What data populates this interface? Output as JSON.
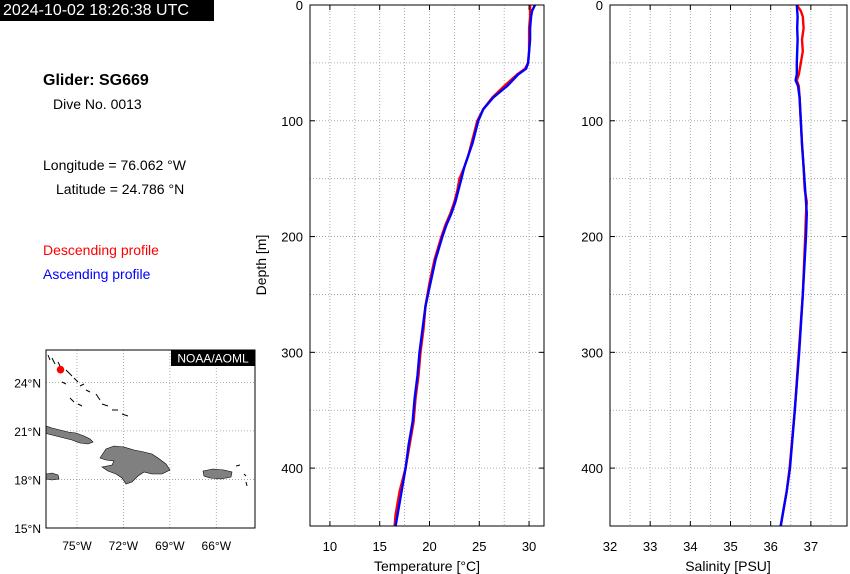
{
  "header": {
    "timestamp": "2024-10-02 18:26:38 UTC",
    "glider_title": "Glider: SG669",
    "dive_no": "Dive No. 0013",
    "longitude": "Longitude = 76.062 °W",
    "latitude": "Latitude = 24.786 °N"
  },
  "legend": {
    "descending": "Descending profile",
    "ascending": "Ascending profile",
    "descending_color": "#ff0000",
    "ascending_color": "#0000ff"
  },
  "map": {
    "credit": "NOAA/AOML",
    "lat_ticks": [
      "24°N",
      "21°N",
      "18°N",
      "15°N"
    ],
    "lon_ticks": [
      "75°W",
      "72°W",
      "69°W",
      "66°W"
    ],
    "lat_values": [
      24,
      21,
      18,
      15
    ],
    "lon_values": [
      -75,
      -72,
      -69,
      -66
    ],
    "lon_range": [
      -77,
      -63.5
    ],
    "lat_range": [
      15,
      26
    ],
    "glider_position": {
      "lon": -76.062,
      "lat": 24.786
    },
    "land_color": "#808080",
    "marker_color": "#ff0000"
  },
  "chart_data": [
    {
      "type": "line",
      "xlabel": "Temperature [°C]",
      "ylabel": "Depth [m]",
      "xlim": [
        8,
        31.5
      ],
      "ylim": [
        450,
        0
      ],
      "x_ticks": [
        10,
        15,
        20,
        25,
        30
      ],
      "x_tick_labels": [
        "10",
        "15",
        "20",
        "25",
        "30"
      ],
      "y_ticks": [
        0,
        100,
        200,
        300,
        400
      ],
      "y_tick_labels": [
        "0",
        "100",
        "200",
        "300",
        "400"
      ],
      "grid": true,
      "series": [
        {
          "color": "#ff0000",
          "y": [
            0,
            10,
            20,
            30,
            40,
            50,
            55,
            60,
            70,
            80,
            90,
            100,
            110,
            120,
            130,
            140,
            150,
            160,
            170,
            180,
            190,
            200,
            220,
            240,
            260,
            280,
            300,
            320,
            340,
            360,
            380,
            400,
            420,
            440,
            450
          ],
          "values": [
            30.1,
            30.1,
            30.0,
            30.0,
            30.0,
            29.9,
            29.6,
            28.8,
            27.5,
            26.3,
            25.4,
            24.8,
            24.5,
            24.2,
            23.9,
            23.5,
            23.0,
            22.8,
            22.5,
            22.1,
            21.6,
            21.2,
            20.5,
            20.0,
            19.6,
            19.4,
            19.1,
            18.9,
            18.6,
            18.4,
            18.0,
            17.6,
            17.0,
            16.6,
            16.5
          ]
        },
        {
          "color": "#0000ff",
          "y": [
            0,
            5,
            10,
            20,
            30,
            40,
            50,
            55,
            60,
            70,
            80,
            90,
            100,
            110,
            120,
            130,
            140,
            150,
            160,
            170,
            180,
            190,
            200,
            220,
            240,
            260,
            280,
            300,
            320,
            340,
            360,
            380,
            400,
            420,
            440,
            450
          ],
          "values": [
            30.6,
            30.3,
            30.2,
            30.1,
            30.1,
            30.0,
            29.9,
            29.7,
            28.9,
            27.8,
            26.4,
            25.4,
            24.9,
            24.6,
            24.3,
            23.9,
            23.5,
            23.2,
            22.9,
            22.6,
            22.2,
            21.7,
            21.3,
            20.6,
            20.1,
            19.6,
            19.3,
            19.0,
            18.8,
            18.5,
            18.3,
            17.9,
            17.6,
            17.2,
            16.8,
            16.6
          ]
        }
      ]
    },
    {
      "type": "line",
      "xlabel": "Salinity [PSU]",
      "xlim": [
        32,
        37.9
      ],
      "ylim": [
        450,
        0
      ],
      "x_ticks": [
        32,
        33,
        34,
        35,
        36,
        37
      ],
      "x_tick_labels": [
        "32",
        "33",
        "34",
        "35",
        "36",
        "37"
      ],
      "y_ticks": [
        0,
        100,
        200,
        300,
        400
      ],
      "y_tick_labels": [
        "0",
        "100",
        "200",
        "300",
        "400"
      ],
      "grid": true,
      "series": [
        {
          "color": "#ff0000",
          "y": [
            0,
            5,
            10,
            20,
            30,
            40,
            50,
            60,
            65,
            70,
            80,
            100,
            120,
            140,
            160,
            170,
            180,
            190,
            200,
            250,
            300,
            350,
            400,
            420,
            440,
            450
          ],
          "values": [
            36.65,
            36.75,
            36.8,
            36.82,
            36.78,
            36.8,
            36.75,
            36.7,
            36.65,
            36.7,
            36.72,
            36.75,
            36.78,
            36.82,
            36.85,
            36.9,
            36.88,
            36.87,
            36.86,
            36.8,
            36.7,
            36.6,
            36.47,
            36.4,
            36.3,
            36.25
          ]
        },
        {
          "color": "#0000ff",
          "y": [
            0,
            10,
            20,
            30,
            40,
            50,
            60,
            65,
            70,
            80,
            100,
            120,
            140,
            160,
            180,
            200,
            250,
            300,
            350,
            400,
            420,
            440,
            450
          ],
          "values": [
            36.65,
            36.67,
            36.66,
            36.67,
            36.66,
            36.65,
            36.65,
            36.62,
            36.68,
            36.72,
            36.75,
            36.78,
            36.82,
            36.86,
            36.9,
            36.88,
            36.8,
            36.71,
            36.6,
            36.48,
            36.4,
            36.3,
            36.25
          ]
        }
      ]
    }
  ]
}
